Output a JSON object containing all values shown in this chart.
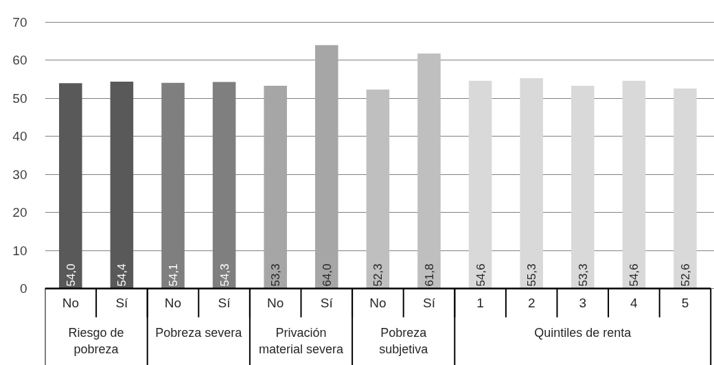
{
  "chart_data": {
    "type": "bar",
    "categories": [
      "No",
      "Sí",
      "No",
      "Sí",
      "No",
      "Sí",
      "No",
      "Sí",
      "1",
      "2",
      "3",
      "4",
      "5"
    ],
    "series": [
      {
        "color": "#595959",
        "values": [
          54.0,
          54.4,
          null,
          null,
          null,
          null,
          null,
          null,
          null,
          null,
          null,
          null,
          null
        ],
        "value_labels": [
          "54,0",
          "54,4",
          null,
          null,
          null,
          null,
          null,
          null,
          null,
          null,
          null,
          null,
          null
        ]
      },
      {
        "color": "#7f7f7f",
        "values": [
          null,
          null,
          54.1,
          54.3,
          null,
          null,
          null,
          null,
          null,
          null,
          null,
          null,
          null
        ],
        "value_labels": [
          null,
          null,
          "54,1",
          "54,3",
          null,
          null,
          null,
          null,
          null,
          null,
          null,
          null,
          null
        ]
      },
      {
        "color": "#a6a6a6",
        "values": [
          null,
          null,
          null,
          null,
          53.3,
          64.0,
          null,
          null,
          null,
          null,
          null,
          null,
          null
        ],
        "value_labels": [
          null,
          null,
          null,
          null,
          "53,3",
          "64,0",
          null,
          null,
          null,
          null,
          null,
          null,
          null
        ]
      },
      {
        "color": "#bfbfbf",
        "values": [
          null,
          null,
          null,
          null,
          null,
          null,
          52.3,
          61.8,
          null,
          null,
          null,
          null,
          null
        ],
        "value_labels": [
          null,
          null,
          null,
          null,
          null,
          null,
          "52,3",
          "61,8",
          null,
          null,
          null,
          null,
          null
        ]
      },
      {
        "color": "#d9d9d9",
        "values": [
          null,
          null,
          null,
          null,
          null,
          null,
          null,
          null,
          54.6,
          55.3,
          53.3,
          54.6,
          52.6
        ],
        "value_labels": [
          null,
          null,
          null,
          null,
          null,
          null,
          null,
          null,
          "54,6",
          "55,3",
          "53,3",
          "54,6",
          "52,6"
        ]
      }
    ],
    "annotations": [
      "Riesgo de pobreza",
      "Pobreza severa",
      "Privación material severa",
      "Pobreza subjetiva",
      "Quintiles de renta"
    ],
    "ylim": [
      0,
      70
    ],
    "yticks": [
      0,
      10,
      20,
      30,
      40,
      50,
      60,
      70
    ],
    "grid": "y"
  }
}
